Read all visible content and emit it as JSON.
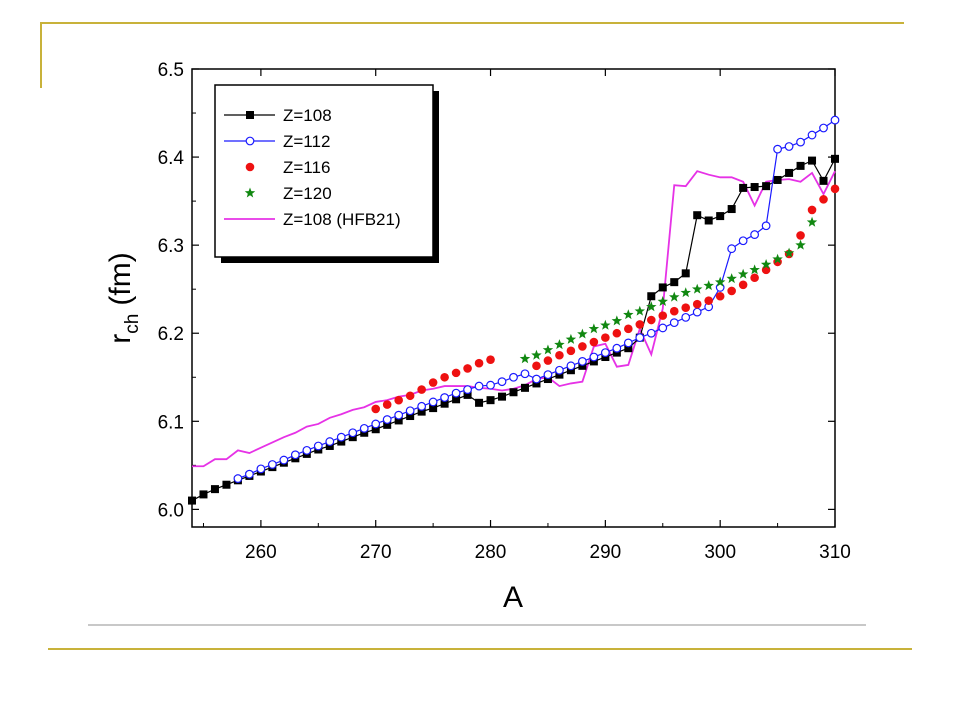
{
  "slide": {
    "frame_color": "#c8b23a",
    "divider_color": "#c8c8c8"
  },
  "chart_data": {
    "type": "line",
    "xlabel": "A",
    "ylabel_main": "r",
    "ylabel_sub": "ch",
    "ylabel_unit": "(fm)",
    "xlim": [
      254,
      310
    ],
    "ylim": [
      5.98,
      6.5
    ],
    "x_ticks": [
      260,
      270,
      280,
      290,
      300,
      310
    ],
    "y_ticks": [
      6.0,
      6.1,
      6.2,
      6.3,
      6.4,
      6.5
    ],
    "x_tick_labels": [
      "260",
      "270",
      "280",
      "290",
      "300",
      "310"
    ],
    "y_tick_labels": [
      "6.0",
      "6.1",
      "6.2",
      "6.3",
      "6.4",
      "6.5"
    ],
    "legend_position": "top-left",
    "series": [
      {
        "name": "Z=108",
        "marker": "square-filled",
        "line": true,
        "color": "#000000",
        "x": [
          254,
          255,
          256,
          257,
          258,
          259,
          260,
          261,
          262,
          263,
          264,
          265,
          266,
          267,
          268,
          269,
          270,
          271,
          272,
          273,
          274,
          275,
          276,
          277,
          278,
          279,
          280,
          281,
          282,
          283,
          284,
          285,
          286,
          287,
          288,
          289,
          290,
          291,
          292,
          293,
          294,
          295,
          296,
          297,
          298,
          299,
          300,
          301,
          302,
          303,
          304,
          305,
          306,
          307,
          308,
          309,
          310
        ],
        "y": [
          6.01,
          6.017,
          6.023,
          6.028,
          6.033,
          6.038,
          6.043,
          6.048,
          6.053,
          6.058,
          6.063,
          6.068,
          6.072,
          6.077,
          6.082,
          6.087,
          6.091,
          6.096,
          6.101,
          6.106,
          6.111,
          6.115,
          6.12,
          6.125,
          6.13,
          6.121,
          6.124,
          6.128,
          6.133,
          6.138,
          6.143,
          6.148,
          6.153,
          6.158,
          6.163,
          6.168,
          6.173,
          6.178,
          6.183,
          6.195,
          6.242,
          6.252,
          6.258,
          6.268,
          6.334,
          6.328,
          6.333,
          6.341,
          6.365,
          6.366,
          6.367,
          6.374,
          6.382,
          6.39,
          6.396,
          6.373,
          6.398
        ]
      },
      {
        "name": "Z=112",
        "marker": "circle-open",
        "line": true,
        "color": "#1a1aff",
        "x": [
          258,
          259,
          260,
          261,
          262,
          263,
          264,
          265,
          266,
          267,
          268,
          269,
          270,
          271,
          272,
          273,
          274,
          275,
          276,
          277,
          278,
          279,
          280,
          281,
          282,
          283,
          284,
          285,
          286,
          287,
          288,
          289,
          290,
          291,
          292,
          293,
          294,
          295,
          296,
          297,
          298,
          299,
          300,
          301,
          302,
          303,
          304,
          305,
          306,
          307,
          308,
          309,
          310
        ],
        "y": [
          6.035,
          6.04,
          6.046,
          6.051,
          6.056,
          6.062,
          6.067,
          6.072,
          6.077,
          6.082,
          6.087,
          6.092,
          6.097,
          6.102,
          6.107,
          6.112,
          6.117,
          6.122,
          6.127,
          6.132,
          6.136,
          6.14,
          6.141,
          6.145,
          6.15,
          6.154,
          6.148,
          6.153,
          6.158,
          6.163,
          6.168,
          6.173,
          6.178,
          6.183,
          6.189,
          6.195,
          6.2,
          6.206,
          6.212,
          6.218,
          6.224,
          6.23,
          6.252,
          6.296,
          6.305,
          6.312,
          6.322,
          6.409,
          6.412,
          6.417,
          6.425,
          6.433,
          6.442
        ]
      },
      {
        "name": "Z=116",
        "marker": "circle-filled",
        "line": false,
        "color": "#ee1111",
        "x": [
          270,
          271,
          272,
          273,
          274,
          275,
          276,
          277,
          278,
          279,
          280,
          284,
          285,
          286,
          287,
          288,
          289,
          290,
          291,
          292,
          293,
          294,
          295,
          296,
          297,
          298,
          299,
          300,
          301,
          302,
          303,
          304,
          305,
          306,
          307,
          308,
          309,
          310
        ],
        "y": [
          6.114,
          6.119,
          6.124,
          6.129,
          6.136,
          6.144,
          6.15,
          6.155,
          6.16,
          6.166,
          6.17,
          6.163,
          6.169,
          6.175,
          6.18,
          6.185,
          6.19,
          6.195,
          6.2,
          6.205,
          6.21,
          6.215,
          6.22,
          6.225,
          6.229,
          6.233,
          6.237,
          6.242,
          6.248,
          6.255,
          6.263,
          6.272,
          6.281,
          6.29,
          6.311,
          6.34,
          6.352,
          6.364
        ]
      },
      {
        "name": "Z=120",
        "marker": "star",
        "line": false,
        "color": "#118811",
        "x": [
          283,
          284,
          285,
          286,
          287,
          288,
          289,
          290,
          291,
          292,
          293,
          294,
          295,
          296,
          297,
          298,
          299,
          300,
          301,
          302,
          303,
          304,
          305,
          306,
          307,
          308
        ],
        "y": [
          6.171,
          6.175,
          6.181,
          6.187,
          6.193,
          6.199,
          6.205,
          6.209,
          6.214,
          6.221,
          6.225,
          6.23,
          6.236,
          6.241,
          6.246,
          6.25,
          6.254,
          6.258,
          6.262,
          6.267,
          6.272,
          6.278,
          6.284,
          6.291,
          6.3,
          6.326
        ]
      },
      {
        "name": "Z=108 (HFB21)",
        "marker": "none",
        "line": true,
        "color": "#e632e6",
        "x": [
          254,
          255,
          256,
          257,
          258,
          259,
          260,
          261,
          262,
          263,
          264,
          265,
          266,
          267,
          268,
          269,
          270,
          271,
          272,
          273,
          274,
          275,
          276,
          277,
          278,
          279,
          280,
          281,
          282,
          283,
          284,
          285,
          286,
          287,
          288,
          289,
          290,
          291,
          292,
          293,
          294,
          295,
          296,
          297,
          298,
          299,
          300,
          301,
          302,
          303,
          304,
          305,
          306,
          307,
          308,
          309,
          310
        ],
        "y": [
          6.049,
          6.049,
          6.057,
          6.057,
          6.067,
          6.064,
          6.07,
          6.076,
          6.082,
          6.087,
          6.094,
          6.097,
          6.104,
          6.108,
          6.113,
          6.116,
          6.122,
          6.124,
          6.128,
          6.13,
          6.135,
          6.137,
          6.14,
          6.14,
          6.14,
          6.138,
          6.137,
          6.135,
          6.137,
          6.141,
          6.148,
          6.15,
          6.14,
          6.143,
          6.145,
          6.185,
          6.188,
          6.162,
          6.164,
          6.205,
          6.176,
          6.228,
          6.368,
          6.367,
          6.384,
          6.38,
          6.377,
          6.377,
          6.372,
          6.345,
          6.372,
          6.374,
          6.375,
          6.372,
          6.382,
          6.358,
          6.384
        ]
      }
    ]
  }
}
